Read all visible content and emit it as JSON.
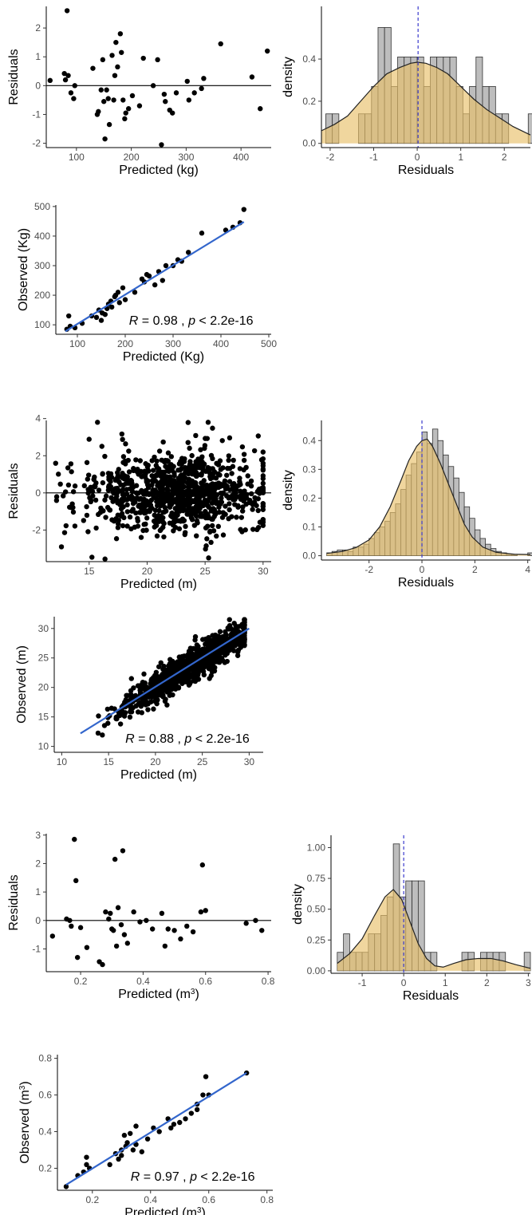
{
  "colors": {
    "points": "#000000",
    "fit_line": "#3366cc",
    "hist_fill": "#bdbdbd",
    "hist_stroke": "#333333",
    "density_fill": "#e8c06a",
    "density_line": "#222222",
    "mean_line": "#3a3acc"
  },
  "chart_data": [
    {
      "id": "kg_resid",
      "type": "scatter",
      "xlabel": "Predicted (kg)",
      "ylabel": "Residuals",
      "xlim": [
        45,
        455
      ],
      "ylim": [
        -2.15,
        2.75
      ],
      "xticks": [
        "100",
        "200",
        "300",
        "400"
      ],
      "yticks": [
        "-2",
        "-1",
        "0",
        "1",
        "2"
      ],
      "hline": 0,
      "points": [
        [
          52,
          0.18
        ],
        [
          78,
          0.42
        ],
        [
          80,
          0.2
        ],
        [
          83,
          2.6
        ],
        [
          85,
          0.35
        ],
        [
          90,
          -0.25
        ],
        [
          95,
          -0.45
        ],
        [
          97,
          0.0
        ],
        [
          130,
          0.6
        ],
        [
          138,
          -1.0
        ],
        [
          140,
          -0.9
        ],
        [
          145,
          -0.15
        ],
        [
          148,
          0.9
        ],
        [
          150,
          -0.55
        ],
        [
          152,
          -1.85
        ],
        [
          155,
          -0.15
        ],
        [
          158,
          -0.45
        ],
        [
          160,
          -1.35
        ],
        [
          165,
          1.05
        ],
        [
          168,
          -0.5
        ],
        [
          170,
          0.35
        ],
        [
          172,
          1.5
        ],
        [
          175,
          0.65
        ],
        [
          180,
          1.8
        ],
        [
          182,
          1.15
        ],
        [
          185,
          -0.5
        ],
        [
          188,
          -1.15
        ],
        [
          190,
          -0.95
        ],
        [
          195,
          -0.8
        ],
        [
          202,
          -0.35
        ],
        [
          215,
          -0.7
        ],
        [
          222,
          0.95
        ],
        [
          240,
          0.0
        ],
        [
          248,
          0.9
        ],
        [
          255,
          -2.05
        ],
        [
          260,
          -0.3
        ],
        [
          262,
          -0.55
        ],
        [
          270,
          -0.85
        ],
        [
          275,
          -0.95
        ],
        [
          282,
          -0.25
        ],
        [
          302,
          0.15
        ],
        [
          305,
          -0.5
        ],
        [
          315,
          -0.25
        ],
        [
          328,
          -0.1
        ],
        [
          332,
          0.25
        ],
        [
          363,
          1.45
        ],
        [
          420,
          0.3
        ],
        [
          435,
          -0.8
        ],
        [
          448,
          1.2
        ]
      ]
    },
    {
      "id": "kg_hist",
      "type": "histogram",
      "xlabel": "Residuals",
      "ylabel": "density",
      "xlim": [
        -2.2,
        2.6
      ],
      "ylim": [
        -0.02,
        0.65
      ],
      "xticks": [
        "-2",
        "-1",
        "0",
        "1",
        "2"
      ],
      "yticks": [
        "0.0",
        "0.2",
        "0.4"
      ],
      "bin_start": -2.1,
      "bin_width": 0.15,
      "counts": [
        0.14,
        0.14,
        0,
        0,
        0,
        0.14,
        0.14,
        0.27,
        0.55,
        0.55,
        0.27,
        0.41,
        0.41,
        0.41,
        0.41,
        0.27,
        0.41,
        0.41,
        0.41,
        0.41,
        0.27,
        0.14,
        0.27,
        0.41,
        0.27,
        0.27,
        0.14,
        0.14,
        0,
        0,
        0,
        0.14
      ],
      "density_curve": [
        [
          -2.2,
          0.06
        ],
        [
          -1.9,
          0.09
        ],
        [
          -1.6,
          0.13
        ],
        [
          -1.3,
          0.2
        ],
        [
          -1.0,
          0.27
        ],
        [
          -0.7,
          0.33
        ],
        [
          -0.4,
          0.36
        ],
        [
          -0.15,
          0.38
        ],
        [
          0.0,
          0.385
        ],
        [
          0.2,
          0.38
        ],
        [
          0.45,
          0.36
        ],
        [
          0.7,
          0.33
        ],
        [
          0.9,
          0.29
        ],
        [
          1.1,
          0.25
        ],
        [
          1.3,
          0.21
        ],
        [
          1.6,
          0.16
        ],
        [
          1.9,
          0.12
        ],
        [
          2.2,
          0.08
        ],
        [
          2.6,
          0.04
        ]
      ],
      "mean_line": 0.02
    },
    {
      "id": "kg_fit",
      "type": "scatter",
      "xlabel": "Predicted (Kg)",
      "ylabel": "Observed  (Kg)",
      "xlim": [
        55,
        505
      ],
      "ylim": [
        68,
        505
      ],
      "xticks": [
        "100",
        "200",
        "300",
        "400",
        "500"
      ],
      "yticks": [
        "100",
        "200",
        "300",
        "400",
        "500"
      ],
      "fit_line": [
        [
          75,
          78
        ],
        [
          448,
          448
        ]
      ],
      "annotation": "R = 0.98 , p < 2.2e-16",
      "points": [
        [
          78,
          85
        ],
        [
          82,
          130
        ],
        [
          85,
          95
        ],
        [
          95,
          90
        ],
        [
          110,
          105
        ],
        [
          130,
          130
        ],
        [
          140,
          125
        ],
        [
          145,
          150
        ],
        [
          150,
          115
        ],
        [
          152,
          140
        ],
        [
          158,
          135
        ],
        [
          162,
          155
        ],
        [
          165,
          170
        ],
        [
          170,
          180
        ],
        [
          172,
          160
        ],
        [
          178,
          195
        ],
        [
          180,
          200
        ],
        [
          185,
          210
        ],
        [
          188,
          175
        ],
        [
          195,
          225
        ],
        [
          200,
          185
        ],
        [
          220,
          210
        ],
        [
          235,
          255
        ],
        [
          240,
          245
        ],
        [
          245,
          270
        ],
        [
          250,
          265
        ],
        [
          262,
          235
        ],
        [
          270,
          280
        ],
        [
          278,
          250
        ],
        [
          285,
          300
        ],
        [
          300,
          300
        ],
        [
          310,
          320
        ],
        [
          318,
          315
        ],
        [
          332,
          345
        ],
        [
          360,
          410
        ],
        [
          410,
          420
        ],
        [
          425,
          430
        ],
        [
          440,
          445
        ],
        [
          448,
          490
        ]
      ]
    },
    {
      "id": "m_resid",
      "type": "scatter",
      "xlabel": "Predicted (m)",
      "ylabel": "Residuals",
      "xlim": [
        11.3,
        30.7
      ],
      "ylim": [
        -3.7,
        3.9
      ],
      "xticks": [
        "15",
        "20",
        "25",
        "30"
      ],
      "yticks": [
        "-2",
        "0",
        "2",
        "4"
      ],
      "hline": 0,
      "n_points": 900,
      "seed": 7
    },
    {
      "id": "m_hist",
      "type": "histogram",
      "xlabel": "Residuals",
      "ylabel": "density",
      "xlim": [
        -3.8,
        4.1
      ],
      "ylim": [
        -0.015,
        0.47
      ],
      "xticks": [
        "-2",
        "0",
        "2",
        "4"
      ],
      "yticks": [
        "0.0",
        "0.1",
        "0.2",
        "0.3",
        "0.4"
      ],
      "bin_start": -3.6,
      "bin_width": 0.2,
      "counts": [
        0.01,
        0.015,
        0.02,
        0.02,
        0.015,
        0.03,
        0.03,
        0.04,
        0.06,
        0.08,
        0.1,
        0.12,
        0.15,
        0.18,
        0.23,
        0.28,
        0.32,
        0.36,
        0.43,
        0.39,
        0.44,
        0.4,
        0.35,
        0.31,
        0.27,
        0.22,
        0.17,
        0.13,
        0.09,
        0.06,
        0.04,
        0.025,
        0.015,
        0.01,
        0.005,
        0.005,
        0.0,
        0.0,
        0.01
      ],
      "density_curve": [
        [
          -3.6,
          0.008
        ],
        [
          -3.0,
          0.015
        ],
        [
          -2.5,
          0.028
        ],
        [
          -2.0,
          0.055
        ],
        [
          -1.6,
          0.1
        ],
        [
          -1.2,
          0.17
        ],
        [
          -0.8,
          0.26
        ],
        [
          -0.5,
          0.33
        ],
        [
          -0.2,
          0.38
        ],
        [
          0.0,
          0.4
        ],
        [
          0.2,
          0.405
        ],
        [
          0.4,
          0.38
        ],
        [
          0.7,
          0.32
        ],
        [
          1.0,
          0.25
        ],
        [
          1.3,
          0.18
        ],
        [
          1.6,
          0.11
        ],
        [
          1.9,
          0.065
        ],
        [
          2.3,
          0.03
        ],
        [
          2.8,
          0.012
        ],
        [
          3.5,
          0.005
        ],
        [
          4.1,
          0.004
        ]
      ],
      "mean_line": 0.0
    },
    {
      "id": "m_fit",
      "type": "scatter",
      "xlabel": "Predicted (m)",
      "ylabel": "Observed  (m)",
      "xlim": [
        9.2,
        31.5
      ],
      "ylim": [
        9.0,
        32.0
      ],
      "xticks": [
        "10",
        "15",
        "20",
        "25",
        "30"
      ],
      "yticks": [
        "10",
        "15",
        "20",
        "25",
        "30"
      ],
      "fit_line": [
        [
          12,
          12.2
        ],
        [
          30,
          30
        ]
      ],
      "annotation": "R = 0.88 , p < 2.2e-16",
      "n_points": 900,
      "seed": 11
    },
    {
      "id": "m3_resid",
      "type": "scatter",
      "xlabel": "Predicted (m3)",
      "ylabel": "Residuals",
      "xlim": [
        0.09,
        0.81
      ],
      "ylim": [
        -1.8,
        3.05
      ],
      "xticks": [
        "0.2",
        "0.4",
        "0.6",
        "0.8"
      ],
      "yticks": [
        "-1",
        "0",
        "1",
        "2",
        "3"
      ],
      "hline": 0,
      "points": [
        [
          0.11,
          -0.55
        ],
        [
          0.155,
          0.05
        ],
        [
          0.165,
          0.0
        ],
        [
          0.17,
          -0.2
        ],
        [
          0.18,
          2.85
        ],
        [
          0.185,
          1.4
        ],
        [
          0.19,
          -1.3
        ],
        [
          0.2,
          -0.25
        ],
        [
          0.22,
          -0.95
        ],
        [
          0.26,
          -1.45
        ],
        [
          0.27,
          -1.55
        ],
        [
          0.28,
          0.3
        ],
        [
          0.29,
          0.05
        ],
        [
          0.295,
          0.25
        ],
        [
          0.3,
          -0.3
        ],
        [
          0.305,
          -0.35
        ],
        [
          0.31,
          2.15
        ],
        [
          0.315,
          -0.9
        ],
        [
          0.32,
          0.45
        ],
        [
          0.33,
          -0.15
        ],
        [
          0.335,
          2.45
        ],
        [
          0.34,
          -0.5
        ],
        [
          0.35,
          -0.8
        ],
        [
          0.37,
          0.3
        ],
        [
          0.39,
          -0.05
        ],
        [
          0.41,
          0.0
        ],
        [
          0.43,
          -0.3
        ],
        [
          0.46,
          0.25
        ],
        [
          0.47,
          -0.9
        ],
        [
          0.48,
          -0.3
        ],
        [
          0.5,
          -0.35
        ],
        [
          0.52,
          -0.65
        ],
        [
          0.54,
          -0.2
        ],
        [
          0.56,
          -0.4
        ],
        [
          0.585,
          0.3
        ],
        [
          0.59,
          1.95
        ],
        [
          0.6,
          0.35
        ],
        [
          0.73,
          -0.1
        ],
        [
          0.76,
          0.0
        ],
        [
          0.78,
          -0.35
        ]
      ]
    },
    {
      "id": "m3_hist",
      "type": "histogram",
      "xlabel": "Residuals",
      "ylabel": "density",
      "xlim": [
        -1.75,
        3.05
      ],
      "ylim": [
        -0.02,
        1.1
      ],
      "xticks": [
        "-1",
        "0",
        "1",
        "2",
        "3"
      ],
      "yticks": [
        "0.00",
        "0.25",
        "0.50",
        "0.75",
        "1.00"
      ],
      "bin_start": -1.6,
      "bin_width": 0.15,
      "counts": [
        0.15,
        0.3,
        0.15,
        0.15,
        0.15,
        0.3,
        0.3,
        0.45,
        0.6,
        1.03,
        0.6,
        0.73,
        0.73,
        0.73,
        0.15,
        0.15,
        0.0,
        0.0,
        0.0,
        0.0,
        0.15,
        0.15,
        0.0,
        0.15,
        0.15,
        0.15,
        0.15,
        0.0,
        0.0,
        0.0,
        0.15
      ],
      "density_curve": [
        [
          -1.6,
          0.06
        ],
        [
          -1.3,
          0.14
        ],
        [
          -1.0,
          0.26
        ],
        [
          -0.7,
          0.45
        ],
        [
          -0.45,
          0.6
        ],
        [
          -0.25,
          0.66
        ],
        [
          -0.05,
          0.58
        ],
        [
          0.15,
          0.4
        ],
        [
          0.35,
          0.22
        ],
        [
          0.55,
          0.1
        ],
        [
          0.75,
          0.04
        ],
        [
          0.95,
          0.03
        ],
        [
          1.2,
          0.06
        ],
        [
          1.5,
          0.09
        ],
        [
          1.8,
          0.1
        ],
        [
          2.1,
          0.1
        ],
        [
          2.4,
          0.08
        ],
        [
          2.7,
          0.05
        ],
        [
          3.05,
          0.02
        ]
      ],
      "mean_line": 0.0
    },
    {
      "id": "m3_fit",
      "type": "scatter",
      "xlabel": "Predicted (m3)",
      "ylabel": "Observed  (m3)",
      "xlim": [
        0.08,
        0.82
      ],
      "ylim": [
        0.08,
        0.82
      ],
      "xticks": [
        "0.2",
        "0.4",
        "0.6",
        "0.8"
      ],
      "yticks": [
        "0.2",
        "0.4",
        "0.6",
        "0.8"
      ],
      "fit_line": [
        [
          0.11,
          0.11
        ],
        [
          0.73,
          0.72
        ]
      ],
      "annotation": "R = 0.97 , p < 2.2e-16",
      "points": [
        [
          0.11,
          0.1
        ],
        [
          0.15,
          0.16
        ],
        [
          0.17,
          0.18
        ],
        [
          0.18,
          0.26
        ],
        [
          0.18,
          0.22
        ],
        [
          0.19,
          0.2
        ],
        [
          0.26,
          0.22
        ],
        [
          0.28,
          0.28
        ],
        [
          0.29,
          0.25
        ],
        [
          0.3,
          0.3
        ],
        [
          0.3,
          0.27
        ],
        [
          0.31,
          0.38
        ],
        [
          0.315,
          0.32
        ],
        [
          0.32,
          0.34
        ],
        [
          0.33,
          0.39
        ],
        [
          0.34,
          0.3
        ],
        [
          0.35,
          0.43
        ],
        [
          0.35,
          0.33
        ],
        [
          0.37,
          0.29
        ],
        [
          0.39,
          0.36
        ],
        [
          0.41,
          0.42
        ],
        [
          0.43,
          0.4
        ],
        [
          0.46,
          0.47
        ],
        [
          0.47,
          0.42
        ],
        [
          0.48,
          0.44
        ],
        [
          0.5,
          0.45
        ],
        [
          0.52,
          0.47
        ],
        [
          0.54,
          0.5
        ],
        [
          0.56,
          0.52
        ],
        [
          0.56,
          0.55
        ],
        [
          0.58,
          0.6
        ],
        [
          0.59,
          0.7
        ],
        [
          0.6,
          0.6
        ],
        [
          0.73,
          0.72
        ]
      ]
    }
  ]
}
